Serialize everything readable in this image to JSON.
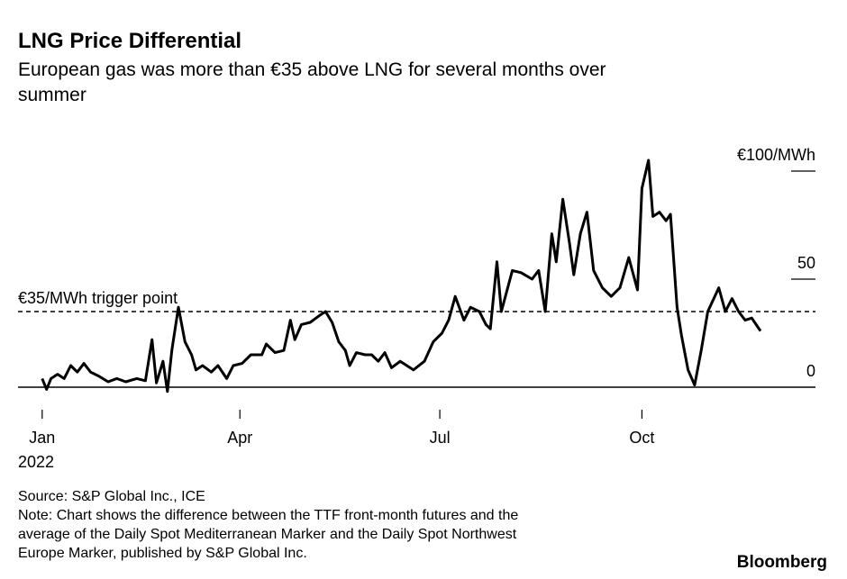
{
  "chart_data": {
    "type": "line",
    "title": "LNG Price Differential",
    "subtitle": [
      "European gas was more than €35 above LNG for several months over",
      "summer"
    ],
    "x": [
      0,
      2,
      4,
      7,
      10,
      13,
      16,
      19,
      22,
      26,
      30,
      34,
      38,
      43,
      47,
      50,
      52,
      55,
      57,
      59,
      62,
      65,
      68,
      70,
      73,
      77,
      80,
      84,
      87,
      91,
      95,
      100,
      102,
      106,
      110,
      113,
      115,
      118,
      122,
      126,
      129,
      132,
      135,
      138,
      140,
      143,
      147,
      150,
      153,
      156,
      159,
      163,
      169,
      174,
      178,
      182,
      185,
      188,
      192,
      195,
      199,
      202,
      204,
      207,
      209,
      214,
      218,
      223,
      226,
      229,
      232,
      234,
      237,
      240,
      242,
      245,
      248,
      251,
      255,
      259,
      263,
      267,
      271,
      273,
      276,
      278,
      281,
      284,
      286,
      289,
      291,
      294,
      297,
      300,
      303,
      308,
      311,
      314,
      317,
      320,
      323,
      327
    ],
    "values": [
      4,
      -1,
      4,
      6,
      4,
      10,
      7,
      11,
      7,
      5,
      2.5,
      4,
      2.5,
      4,
      3,
      22,
      2,
      12,
      -2,
      17,
      37,
      21,
      15,
      8,
      10,
      7,
      10,
      4,
      10,
      11,
      15,
      15,
      20,
      16,
      17,
      31,
      22,
      29,
      30,
      33,
      35,
      30,
      21,
      17,
      10,
      16,
      15,
      15,
      12,
      16,
      9,
      12,
      8,
      12,
      21,
      25,
      31,
      42,
      31,
      37,
      35,
      29,
      27,
      58,
      35,
      54,
      53,
      50,
      54,
      35,
      71,
      58,
      87,
      67,
      52,
      71,
      81,
      54,
      46,
      42,
      46,
      60,
      45,
      92,
      105,
      79,
      81,
      77,
      80,
      37,
      24,
      8,
      1,
      17,
      35,
      46,
      35,
      41,
      35,
      31,
      32,
      26
    ],
    "color": "#000000",
    "xlim": [
      -11,
      352
    ],
    "xticks": [
      {
        "value": 0,
        "label": "Jan"
      },
      {
        "value": 90,
        "label": "Apr"
      },
      {
        "value": 181,
        "label": "Jul"
      },
      {
        "value": 273,
        "label": "Oct"
      }
    ],
    "x_sublabel": "2022",
    "ylim": [
      0,
      100
    ],
    "yticks": [
      0,
      50,
      {
        "value": 100,
        "label": "€100/MWh"
      }
    ],
    "threshold": {
      "value": 35,
      "label": "€35/MWh trigger point"
    },
    "source": "Source: S&P Global Inc., ICE",
    "note": [
      "Note: Chart shows the difference between the TTF front-month futures and the",
      "average of the Daily Spot Mediterranean Marker and the Daily Spot Northwest",
      "Europe Marker, published by S&P Global Inc."
    ],
    "brand": "Bloomberg"
  }
}
